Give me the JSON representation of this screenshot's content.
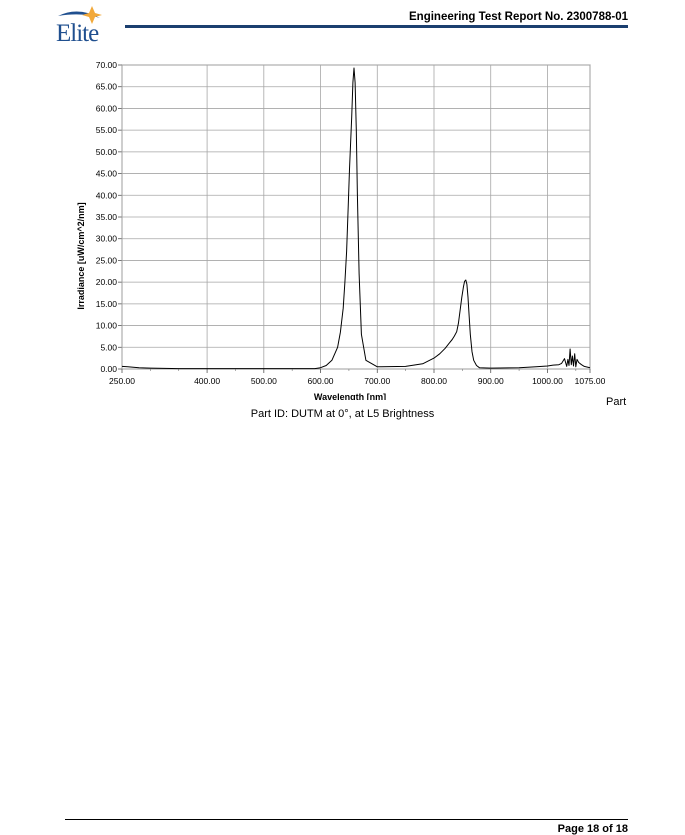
{
  "header": {
    "logo_text": "Elite",
    "report_title": "Engineering Test Report No. 2300788-01"
  },
  "caption": "Part ID: DUTM at 0°, at L5 Brightness",
  "cut_label": "Part",
  "footer": {
    "page": "Page 18 of 18"
  },
  "colors": {
    "brand_blue": "#1f4f8f",
    "brand_gold": "#f2a93b",
    "rule_blue": "#1b3f6f"
  },
  "chart_data": {
    "type": "line",
    "title": "",
    "xlabel": "Wavelength [nm]",
    "ylabel": "Irradiance [uW/cm^2/nm]",
    "xlim": [
      250,
      1075
    ],
    "ylim": [
      0,
      70
    ],
    "grid": true,
    "legend": "none",
    "x_ticks": [
      "250.00",
      "400.00",
      "500.00",
      "600.00",
      "700.00",
      "800.00",
      "900.00",
      "1000.00",
      "1075.00"
    ],
    "x_tick_values": [
      250,
      400,
      500,
      600,
      700,
      800,
      900,
      1000,
      1075
    ],
    "y_ticks": [
      "0.00",
      "5.00",
      "10.00",
      "15.00",
      "20.00",
      "25.00",
      "30.00",
      "35.00",
      "40.00",
      "45.00",
      "50.00",
      "55.00",
      "60.00",
      "65.00",
      "70.00"
    ],
    "y_tick_values": [
      0,
      5,
      10,
      15,
      20,
      25,
      30,
      35,
      40,
      45,
      50,
      55,
      60,
      65,
      70
    ],
    "series": [
      {
        "color": "#000000",
        "x": [
          250,
          260,
          280,
          300,
          350,
          400,
          450,
          500,
          550,
          590,
          600,
          610,
          620,
          630,
          635,
          640,
          643,
          646,
          649,
          651,
          653,
          655,
          657,
          659,
          661,
          663,
          665,
          668,
          672,
          680,
          700,
          750,
          780,
          800,
          810,
          820,
          826,
          832,
          836,
          840,
          843,
          846,
          849,
          852,
          854,
          856,
          858,
          860,
          862,
          864,
          867,
          870,
          875,
          880,
          900,
          950,
          980,
          1000,
          1010,
          1020,
          1025,
          1030,
          1034,
          1036,
          1038,
          1040,
          1042,
          1044,
          1046,
          1048,
          1050,
          1052,
          1055,
          1060,
          1065,
          1075
        ],
        "y": [
          0.6,
          0.5,
          0.3,
          0.2,
          0.1,
          0.1,
          0.1,
          0.1,
          0.1,
          0.1,
          0.3,
          0.8,
          2.0,
          5.0,
          8.5,
          14.0,
          20.0,
          27.0,
          38.0,
          46.0,
          52.0,
          58.0,
          66.0,
          69.3,
          66.0,
          55.0,
          40.0,
          22.0,
          8.0,
          2.0,
          0.5,
          0.6,
          1.2,
          2.5,
          3.5,
          4.8,
          5.8,
          6.8,
          7.6,
          8.6,
          10.5,
          13.5,
          16.5,
          19.0,
          20.2,
          20.5,
          19.5,
          16.5,
          12.0,
          8.0,
          4.0,
          2.0,
          0.8,
          0.3,
          0.2,
          0.3,
          0.5,
          0.7,
          0.9,
          1.0,
          1.3,
          2.4,
          0.6,
          2.2,
          0.8,
          4.6,
          1.0,
          3.0,
          0.7,
          3.5,
          0.5,
          2.2,
          1.5,
          1.0,
          0.6,
          0.3
        ]
      }
    ]
  }
}
